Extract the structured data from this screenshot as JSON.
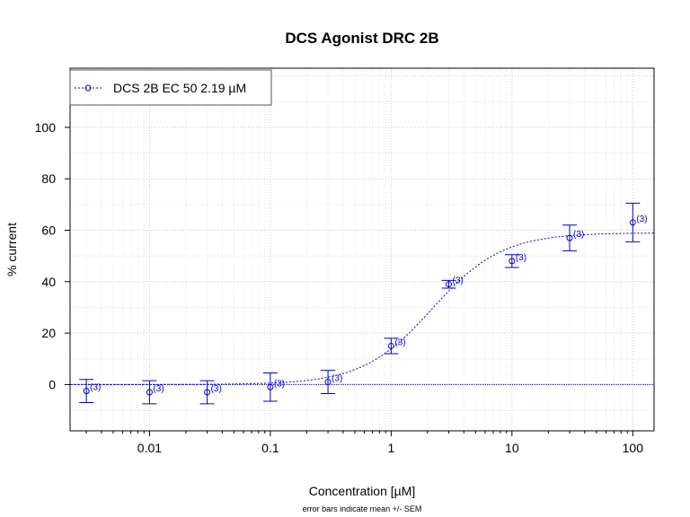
{
  "chart_data": {
    "type": "scatter",
    "title": "DCS Agonist DRC 2B",
    "xlabel": "Concentration [µM]",
    "ylabel": "% current",
    "footnote": "error bars indicate mean +/- SEM",
    "x_scale": "log",
    "xlim": [
      0.0022,
      150
    ],
    "ylim": [
      -18,
      123
    ],
    "x_ticks": [
      0.01,
      0.1,
      1,
      10,
      100
    ],
    "x_tick_labels": [
      "0.01",
      "0.1",
      "1",
      "10",
      "100"
    ],
    "y_ticks": [
      0,
      20,
      40,
      60,
      80,
      100
    ],
    "y_tick_labels": [
      "0",
      "20",
      "40",
      "60",
      "80",
      "100"
    ],
    "grid": true,
    "legend_position": "top-left",
    "color": "#0000cc",
    "series": [
      {
        "name": "DCS 2B EC 50 2.19 µM",
        "points": [
          {
            "x": 0.003,
            "y": -2.5,
            "sem": 4.5,
            "n_label": "(3)"
          },
          {
            "x": 0.01,
            "y": -3.0,
            "sem": 4.5,
            "n_label": "(3)"
          },
          {
            "x": 0.03,
            "y": -3.0,
            "sem": 4.5,
            "n_label": "(3)"
          },
          {
            "x": 0.1,
            "y": -1.0,
            "sem": 5.5,
            "n_label": "(3)"
          },
          {
            "x": 0.3,
            "y": 1.0,
            "sem": 4.5,
            "n_label": "(3)"
          },
          {
            "x": 1,
            "y": 15.0,
            "sem": 3.0,
            "n_label": "(3)"
          },
          {
            "x": 3,
            "y": 39.0,
            "sem": 1.5,
            "n_label": "(3)"
          },
          {
            "x": 10,
            "y": 48.0,
            "sem": 2.5,
            "n_label": "(3)"
          },
          {
            "x": 30,
            "y": 57.0,
            "sem": 5.0,
            "n_label": "(3)"
          },
          {
            "x": 100,
            "y": 63.0,
            "sem": 7.5,
            "n_label": "(3)"
          }
        ],
        "fit": {
          "model": "hill",
          "bottom": 0,
          "top": 59,
          "ec50": 2.19,
          "hill": 1.5
        }
      }
    ],
    "reference_lines": [
      {
        "y": 0,
        "style": "dotted"
      }
    ]
  }
}
